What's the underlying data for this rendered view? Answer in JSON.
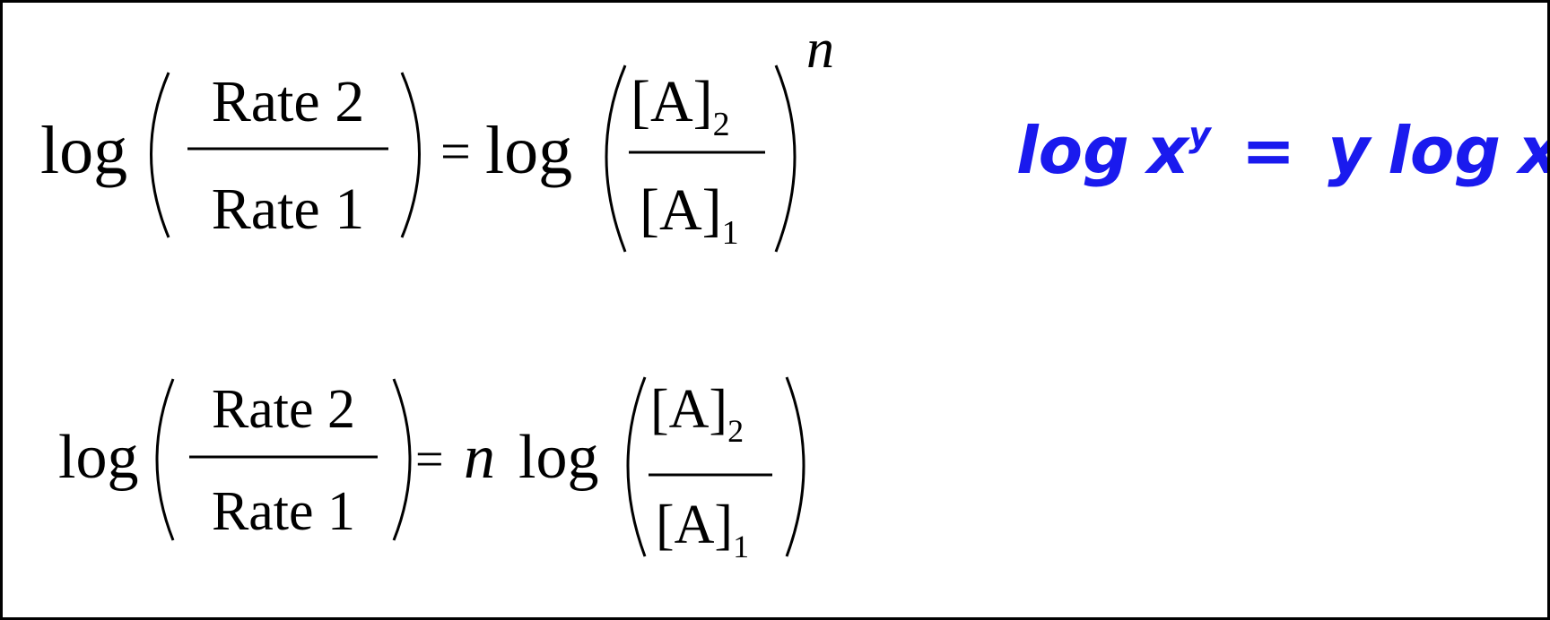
{
  "color_ink": "#000000",
  "color_handwriting": "#1a1aee",
  "equation1": {
    "log_left": "log",
    "num": "Rate 2",
    "den": "Rate 1",
    "equals": "=",
    "log_right": "log",
    "a2_base": "[A]",
    "a2_sub": "2",
    "a1_base": "[A]",
    "a1_sub": "1",
    "exponent": "n"
  },
  "equation2": {
    "log_left": "log",
    "num": "Rate 2",
    "den": "Rate 1",
    "equals": "=",
    "coef": "n",
    "log_right": "log",
    "a2_base": "[A]",
    "a2_sub": "2",
    "a1_base": "[A]",
    "a1_sub": "1"
  },
  "note": {
    "lhs_log": "log",
    "lhs_base": "x",
    "lhs_exp": "y",
    "equals": "=",
    "rhs_coef": "y",
    "rhs_log": "log",
    "rhs_arg": "x"
  }
}
